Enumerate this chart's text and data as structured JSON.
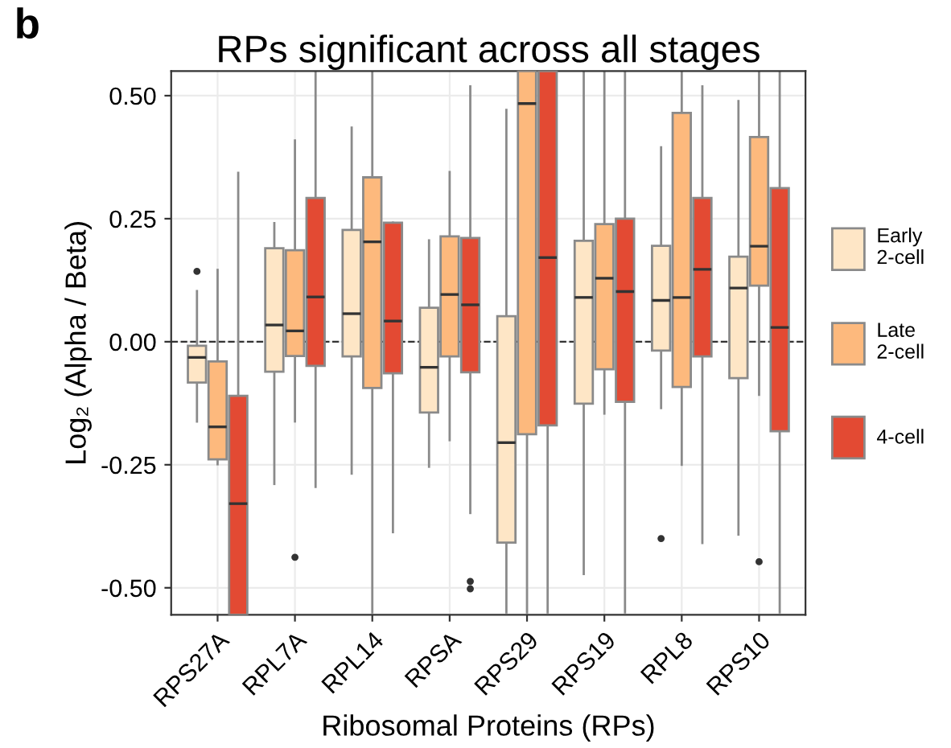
{
  "chart_data": {
    "type": "box",
    "title": "RPs significant across all stages",
    "xlabel": "Ribosomal Proteins (RPs)",
    "ylabel": "Log₂ (Alpha / Beta)",
    "annotations": [
      "b"
    ],
    "categories": [
      "RPS27A",
      "RPL7A",
      "RPL14",
      "RPSA",
      "RPS29",
      "RPS19",
      "RPL8",
      "RPS10"
    ],
    "ylim": [
      -0.555,
      0.55
    ],
    "yticks": [
      {
        "value": -0.5,
        "label": "-0.50"
      },
      {
        "value": -0.25,
        "label": "-0.25"
      },
      {
        "value": 0,
        "label": "0.00"
      },
      {
        "value": 0.25,
        "label": "0.25"
      },
      {
        "value": 0.5,
        "label": "0.50"
      }
    ],
    "grid": true,
    "legend": "right",
    "ref_lines": [
      {
        "axis": "y",
        "value": 0,
        "line_style": "dashed",
        "color": "#333333"
      }
    ],
    "series": [
      {
        "name": "Early\n2-cell",
        "color": "#fee6c6",
        "boxes": [
          {
            "low": -0.162,
            "q1": -0.083,
            "median": -0.032,
            "q3": -0.008,
            "high": 0.103,
            "outliers": [
              0.143
            ]
          },
          {
            "low": -0.289,
            "q1": -0.061,
            "median": 0.034,
            "q3": 0.19,
            "high": 0.241
          },
          {
            "low": -0.268,
            "q1": -0.03,
            "median": 0.057,
            "q3": 0.227,
            "high": 0.435
          },
          {
            "low": -0.254,
            "q1": -0.144,
            "median": -0.052,
            "q3": 0.069,
            "high": 0.206
          },
          {
            "low": -0.55,
            "q1": -0.408,
            "median": -0.205,
            "q3": 0.052,
            "high": 0.471
          },
          {
            "low": -0.472,
            "q1": -0.126,
            "median": 0.09,
            "q3": 0.205,
            "high": 0.55
          },
          {
            "low": -0.135,
            "q1": -0.018,
            "median": 0.084,
            "q3": 0.195,
            "high": 0.395,
            "outliers": [
              -0.4
            ]
          },
          {
            "low": -0.392,
            "q1": -0.074,
            "median": 0.109,
            "q3": 0.173,
            "high": 0.489
          }
        ]
      },
      {
        "name": "Late\n2-cell",
        "color": "#fdb97d",
        "boxes": [
          {
            "low": -0.249,
            "q1": -0.239,
            "median": -0.173,
            "q3": -0.04,
            "high": 0.146
          },
          {
            "low": -0.162,
            "q1": -0.029,
            "median": 0.022,
            "q3": 0.186,
            "high": 0.409,
            "outliers": [
              -0.438
            ]
          },
          {
            "low": -0.55,
            "q1": -0.094,
            "median": 0.203,
            "q3": 0.334,
            "high": 0.55
          },
          {
            "low": -0.2,
            "q1": -0.03,
            "median": 0.096,
            "q3": 0.214,
            "high": 0.345
          },
          {
            "low": -0.55,
            "q1": -0.188,
            "median": 0.484,
            "q3": 0.55,
            "high": 0.55
          },
          {
            "low": -0.146,
            "q1": -0.056,
            "median": 0.129,
            "q3": 0.239,
            "high": 0.55
          },
          {
            "low": -0.25,
            "q1": -0.092,
            "median": 0.09,
            "q3": 0.465,
            "high": 0.55
          },
          {
            "low": -0.108,
            "q1": 0.114,
            "median": 0.194,
            "q3": 0.416,
            "high": 0.55,
            "outliers": [
              -0.447
            ]
          }
        ]
      },
      {
        "name": "4-cell",
        "color": "#e34a33",
        "boxes": [
          {
            "low": -0.555,
            "q1": -0.555,
            "median": -0.329,
            "q3": -0.11,
            "high": 0.343
          },
          {
            "low": -0.295,
            "q1": -0.049,
            "median": 0.091,
            "q3": 0.292,
            "high": 0.55
          },
          {
            "low": -0.387,
            "q1": -0.064,
            "median": 0.042,
            "q3": 0.242,
            "high": 0.242
          },
          {
            "low": -0.348,
            "q1": -0.062,
            "median": 0.075,
            "q3": 0.211,
            "high": 0.519,
            "outliers": [
              -0.487,
              -0.502
            ]
          },
          {
            "low": -0.55,
            "q1": -0.17,
            "median": 0.171,
            "q3": 0.55,
            "high": 0.55
          },
          {
            "low": -0.55,
            "q1": -0.122,
            "median": 0.102,
            "q3": 0.25,
            "high": 0.55
          },
          {
            "low": -0.409,
            "q1": -0.03,
            "median": 0.147,
            "q3": 0.292,
            "high": 0.519
          },
          {
            "low": -0.55,
            "q1": -0.182,
            "median": 0.029,
            "q3": 0.312,
            "high": 0.55
          }
        ]
      }
    ]
  }
}
